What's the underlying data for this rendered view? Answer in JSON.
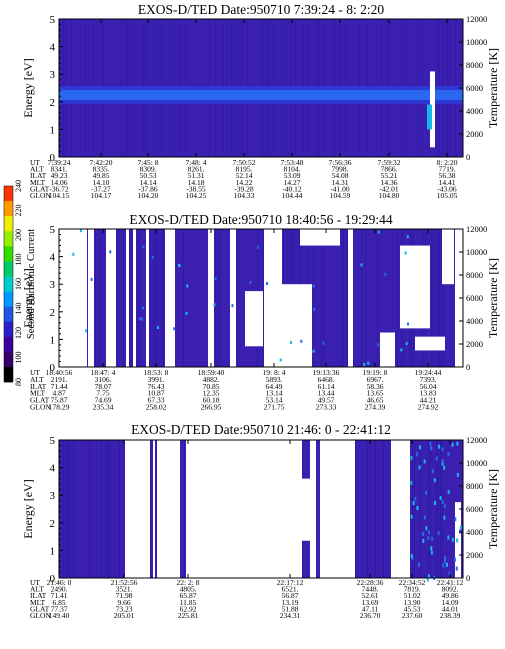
{
  "colorbar": {
    "label": "Second Harmonic Current",
    "ticks": [
      "80",
      "100",
      "120",
      "140",
      "160",
      "180",
      "200",
      "220",
      "240"
    ],
    "colors": [
      "#000000",
      "#3a006a",
      "#3a00a0",
      "#2a22c8",
      "#2255e6",
      "#0099ff",
      "#00cccc",
      "#00cc66",
      "#33dd00",
      "#99ee00",
      "#eeee00",
      "#ff9900",
      "#ff3300"
    ]
  },
  "row_labels": [
    "UT",
    "ALT",
    "ILAT",
    "MLT",
    "GLAT",
    "GLON"
  ],
  "chart_data": [
    {
      "type": "heatmap",
      "title": "EXOS-D/TED   Date:950710  7:39:24 - 8: 2:20",
      "ylabel": "Energy [eV]",
      "y2label": "Temperature [K]",
      "ylim": [
        0,
        5
      ],
      "y2lim": [
        0,
        12000
      ],
      "yticks": [
        "0",
        "1",
        "2",
        "3",
        "4",
        "5"
      ],
      "y2ticks": [
        "0",
        "2000",
        "4000",
        "6000",
        "8000",
        "10000",
        "12000"
      ],
      "columns": [
        [
          "7:39:24",
          "8341.",
          "49.23",
          "14.06",
          "-36.72",
          "104.15"
        ],
        [
          "7:42:20",
          "8335.",
          "49.85",
          "14.10",
          "-37.27",
          "104.17"
        ],
        [
          "7:45: 8",
          "8309.",
          "50.53",
          "14.14",
          "-37.86",
          "104.20"
        ],
        [
          "7:48: 4",
          "8261.",
          "51.31",
          "14.18",
          "-38.55",
          "104.25"
        ],
        [
          "7:50:52",
          "8195.",
          "52.14",
          "14.22",
          "-39.28",
          "104.33"
        ],
        [
          "7:53:48",
          "8104.",
          "53.09",
          "14.27",
          "-40.12",
          "104.44"
        ],
        [
          "7:56:36",
          "7998.",
          "54.08",
          "14.31",
          "-41.00",
          "104.59"
        ],
        [
          "7:59:32",
          "7866.",
          "55.21",
          "14.36",
          "-42.01",
          "104.80"
        ],
        [
          "8: 2:20",
          "7719.",
          "56.38",
          "14.41",
          "-43.06",
          "105.05"
        ]
      ]
    },
    {
      "type": "heatmap",
      "title": "EXOS-D/TED   Date:950710  18:40:56 - 19:29:44",
      "ylabel": "Energy [eV]",
      "y2label": "Temperature [K]",
      "ylim": [
        0,
        5
      ],
      "y2lim": [
        0,
        12000
      ],
      "yticks": [
        "0",
        "1",
        "2",
        "3",
        "4",
        "5"
      ],
      "y2ticks": [
        "0",
        "2000",
        "4000",
        "6000",
        "8000",
        "10000",
        "12000"
      ],
      "columns": [
        [
          "18:40:56",
          "2191.",
          "71.44",
          "4.87",
          "75.87",
          "178.29"
        ],
        [
          "18:47: 4",
          "3106.",
          "78.07",
          "7.75",
          "74.69",
          "235.34"
        ],
        [
          "18:53: 8",
          "3991.",
          "76.43",
          "10.87",
          "67.33",
          "258.02"
        ],
        [
          "18:59:40",
          "4882.",
          "70.85",
          "12.35",
          "60.18",
          "266.95"
        ],
        [
          "19: 8: 4",
          "5893.",
          "64.49",
          "13.14",
          "53.14",
          "271.75"
        ],
        [
          "19:13:36",
          "6468.",
          "61.14",
          "13.44",
          "49.57",
          "273.33"
        ],
        [
          "19:19: 8",
          "6967.",
          "58.36",
          "13.65",
          "46.65",
          "274.39"
        ],
        [
          "19:24:44",
          "7393.",
          "56.04",
          "13.83",
          "44.21",
          "274.92"
        ]
      ]
    },
    {
      "type": "heatmap",
      "title": "EXOS-D/TED   Date:950710  21:46: 0 - 22:41:12",
      "ylabel": "Energy [eV]",
      "y2label": "Temperature [K]",
      "ylim": [
        0,
        5
      ],
      "y2lim": [
        0,
        12000
      ],
      "yticks": [
        "0",
        "1",
        "2",
        "3",
        "4",
        "5"
      ],
      "y2ticks": [
        "0",
        "2000",
        "4000",
        "6000",
        "8000",
        "10000",
        "12000"
      ],
      "columns": [
        [
          "21:46: 0",
          "2490.",
          "71.41",
          "6.85",
          "77.37",
          "149.40"
        ],
        [
          "21:52:56",
          "3521.",
          "71.98",
          "9.66",
          "73.23",
          "205.01"
        ],
        [
          "22: 2: 8",
          "4805.",
          "65.87",
          "11.85",
          "62.92",
          "225.81"
        ],
        [
          "22:17:12",
          "6521.",
          "56.87",
          "13.19",
          "51.88",
          "234.31"
        ],
        [
          "22:28:36",
          "7448.",
          "52.61",
          "13.69",
          "47.11",
          "236.70"
        ],
        [
          "22:34:52",
          "7819.",
          "51.02",
          "13.90",
          "45.53",
          "237.60"
        ],
        [
          "22:41:12",
          "8092.",
          "49.86",
          "14.09",
          "44.01",
          "238.39"
        ]
      ]
    }
  ]
}
